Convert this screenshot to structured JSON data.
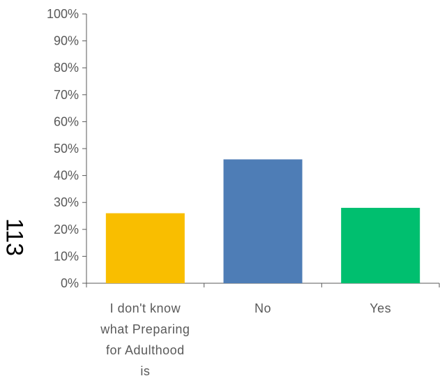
{
  "side_label": "113",
  "chart_data": {
    "type": "bar",
    "categories": [
      "I don't know what Preparing for Adulthood is",
      "No",
      "Yes"
    ],
    "category_label_lines": [
      [
        "I don't know",
        "what Preparing",
        "for Adulthood",
        "is"
      ],
      [
        "No"
      ],
      [
        "Yes"
      ]
    ],
    "values": [
      0.26,
      0.46,
      0.28
    ],
    "bar_colors": [
      "#F9BE00",
      "#4E7DB6",
      "#00BF6F"
    ],
    "ylim": [
      0,
      1
    ],
    "yticks": [
      0,
      0.1,
      0.2,
      0.3,
      0.4,
      0.5,
      0.6,
      0.7,
      0.8,
      0.9,
      1.0
    ],
    "ytick_labels": [
      "0%",
      "10%",
      "20%",
      "30%",
      "40%",
      "50%",
      "60%",
      "70%",
      "80%",
      "90%",
      "100%"
    ],
    "grid": false,
    "axis_color": "#595959"
  }
}
